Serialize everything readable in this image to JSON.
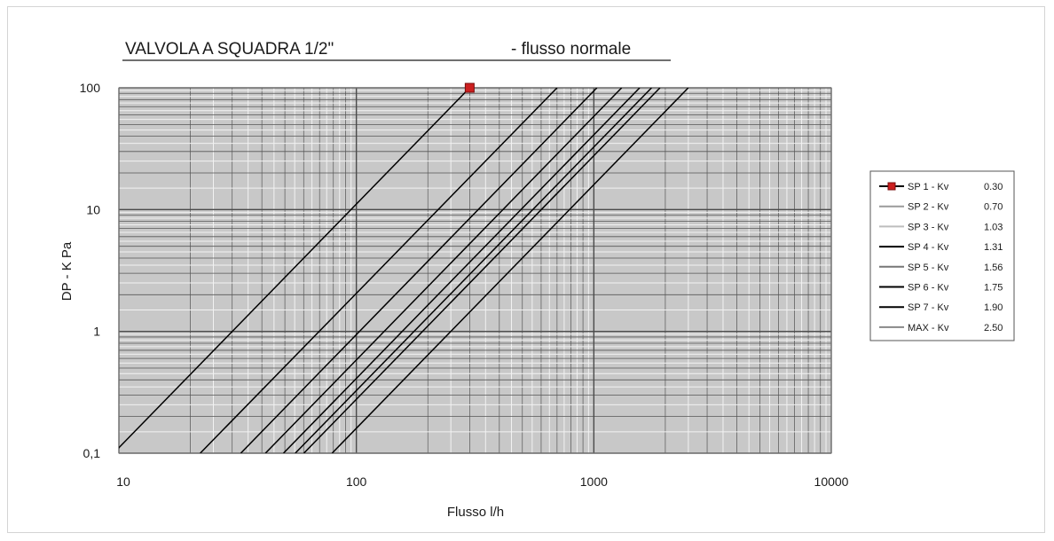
{
  "chart_data": {
    "type": "line",
    "title_left": "VALVOLA A SQUADRA 1/2\"",
    "title_right": "- flusso normale",
    "xlabel": "Flusso l/h",
    "ylabel": "DP - K Pa",
    "x_scale": "log",
    "y_scale": "log",
    "xlim": [
      10,
      10000
    ],
    "ylim": [
      0.1,
      100
    ],
    "x_ticks": [
      {
        "value": 10,
        "label": "10"
      },
      {
        "value": 100,
        "label": "100"
      },
      {
        "value": 1000,
        "label": "1000"
      },
      {
        "value": 10000,
        "label": "10000"
      }
    ],
    "y_ticks": [
      {
        "value": 0.1,
        "label": "0,1"
      },
      {
        "value": 1,
        "label": "1"
      },
      {
        "value": 10,
        "label": "10"
      },
      {
        "value": 100,
        "label": "100"
      }
    ],
    "grid": true,
    "legend_position": "right",
    "series": [
      {
        "label": "SP 1 - Kv",
        "kv_text": "0.30",
        "kv": 0.3,
        "color": "#000000",
        "legend_color": "#000000",
        "marker": "square",
        "marker_color": "#cc1f1f",
        "x": [
          9.5,
          300
        ],
        "y": [
          0.1,
          100
        ]
      },
      {
        "label": "SP 2 - Kv",
        "kv_text": "0.70",
        "kv": 0.7,
        "color": "#000000",
        "legend_color": "#9a9a9a",
        "x": [
          22,
          700
        ],
        "y": [
          0.1,
          100
        ]
      },
      {
        "label": "SP 3 - Kv",
        "kv_text": "1.03",
        "kv": 1.03,
        "color": "#000000",
        "legend_color": "#bdbdbd",
        "x": [
          32.6,
          1030
        ],
        "y": [
          0.1,
          100
        ]
      },
      {
        "label": "SP 4 - Kv",
        "kv_text": "1.31",
        "kv": 1.31,
        "color": "#000000",
        "legend_color": "#000000",
        "x": [
          41.4,
          1310
        ],
        "y": [
          0.1,
          100
        ]
      },
      {
        "label": "SP 5 - Kv",
        "kv_text": "1.56",
        "kv": 1.56,
        "color": "#000000",
        "legend_color": "#777777",
        "x": [
          49.3,
          1560
        ],
        "y": [
          0.1,
          100
        ]
      },
      {
        "label": "SP 6 - Kv",
        "kv_text": "1.75",
        "kv": 1.75,
        "color": "#000000",
        "legend_color": "#000000",
        "x": [
          55.3,
          1750
        ],
        "y": [
          0.1,
          100
        ]
      },
      {
        "label": "SP 7 - Kv",
        "kv_text": "1.90",
        "kv": 1.9,
        "color": "#000000",
        "legend_color": "#000000",
        "x": [
          60.1,
          1900
        ],
        "y": [
          0.1,
          100
        ]
      },
      {
        "label": "MAX - Kv",
        "kv_text": "2.50",
        "kv": 2.5,
        "color": "#000000",
        "legend_color": "#888888",
        "x": [
          79,
          2500
        ],
        "y": [
          0.1,
          100
        ]
      }
    ],
    "colors": {
      "plot_background": "#c8c8c8",
      "minor_grid": "#f2f2f2",
      "major_grid": "#4a4a4a",
      "plot_border": "#777777"
    }
  }
}
